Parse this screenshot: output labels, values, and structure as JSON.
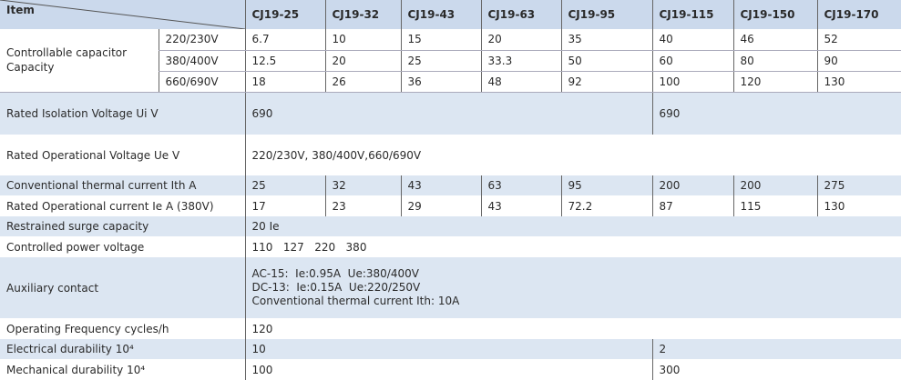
{
  "header": {
    "item": "Item",
    "models": [
      "CJ19-25",
      "CJ19-32",
      "CJ19-43",
      "CJ19-63",
      "CJ19-95",
      "CJ19-115",
      "CJ19-150",
      "CJ19-170"
    ]
  },
  "capacitor": {
    "label": "Controllable capacitor Capacity",
    "rows": [
      {
        "voltage": "220/230V",
        "values": [
          "6.7",
          "10",
          "15",
          "20",
          "35",
          "40",
          "46",
          "52"
        ]
      },
      {
        "voltage": "380/400V",
        "values": [
          "12.5",
          "20",
          "25",
          "33.3",
          "50",
          "60",
          "80",
          "90"
        ]
      },
      {
        "voltage": "660/690V",
        "values": [
          "18",
          "26",
          "36",
          "48",
          "92",
          "100",
          "120",
          "130"
        ]
      }
    ]
  },
  "rows": [
    {
      "label": "Rated Isolation Voltage Ui V",
      "cells": [
        "690",
        "690"
      ]
    },
    {
      "label": "Rated Operational Voltage Ue V",
      "cells": [
        "220/230V, 380/400V,660/690V"
      ]
    },
    {
      "label": "Conventional thermal current Ith A",
      "cells": [
        "25",
        "32",
        "43",
        "63",
        "95",
        "200",
        "200",
        "275"
      ]
    },
    {
      "label": "Rated Operational current Ie A (380V)",
      "cells": [
        "17",
        "23",
        "29",
        "43",
        "72.2",
        "87",
        "115",
        "130"
      ]
    },
    {
      "label": "Restrained surge capacity",
      "cells": [
        "20 Ie"
      ]
    },
    {
      "label": "Controlled power voltage",
      "cells": [
        "110   127   220   380"
      ]
    },
    {
      "label": "Auxiliary contact",
      "lines": [
        "AC-15:  Ie:0.95A  Ue:380/400V",
        "DC-13:  Ie:0.15A  Ue:220/250V",
        "Conventional thermal current Ith: 10A"
      ]
    },
    {
      "label": "Operating Frequency cycles/h",
      "cells": [
        "120"
      ]
    },
    {
      "label": "Electrical durability 10⁴",
      "cells": [
        "10",
        "2"
      ]
    },
    {
      "label": "Mechanical durability 10⁴",
      "cells": [
        "100",
        "300"
      ]
    }
  ]
}
